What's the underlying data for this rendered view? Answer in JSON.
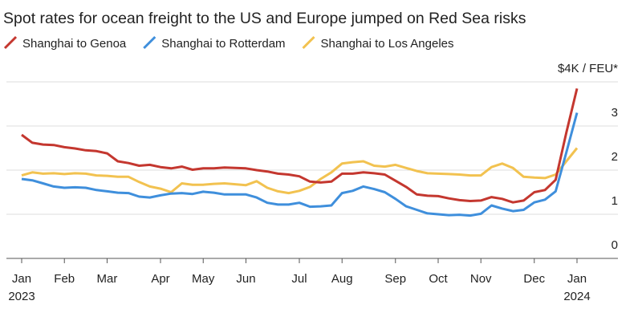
{
  "chart_data": {
    "type": "line",
    "title": "Spot rates for ocean freight to the US and Europe jumped on Red Sea risks",
    "categories": [
      "Jan\n2023",
      null,
      null,
      null,
      "Feb",
      null,
      null,
      null,
      "Mar",
      null,
      null,
      null,
      null,
      "Apr",
      null,
      null,
      null,
      "May",
      null,
      null,
      null,
      "Jun",
      null,
      null,
      null,
      null,
      "Jul",
      null,
      null,
      null,
      "Aug",
      null,
      null,
      null,
      null,
      "Sep",
      null,
      null,
      null,
      "Oct",
      null,
      null,
      null,
      "Nov",
      null,
      null,
      null,
      null,
      "Dec",
      null,
      null,
      null,
      "Jan\n2024"
    ],
    "series": [
      {
        "name": "Shanghai to Genoa",
        "color": "#c4372f",
        "values": [
          2.8,
          2.62,
          2.58,
          2.57,
          2.52,
          2.49,
          2.45,
          2.43,
          2.38,
          2.2,
          2.16,
          2.1,
          2.12,
          2.07,
          2.04,
          2.08,
          2.01,
          2.04,
          2.04,
          2.06,
          2.05,
          2.04,
          2.0,
          1.97,
          1.92,
          1.9,
          1.86,
          1.74,
          1.72,
          1.74,
          1.92,
          1.92,
          1.95,
          1.93,
          1.9,
          1.76,
          1.62,
          1.45,
          1.42,
          1.41,
          1.36,
          1.32,
          1.3,
          1.31,
          1.39,
          1.35,
          1.27,
          1.31,
          1.5,
          1.55,
          1.78,
          2.85,
          3.85
        ]
      },
      {
        "name": "Shanghai to Rotterdam",
        "color": "#3f8fdc",
        "values": [
          1.8,
          1.77,
          1.7,
          1.63,
          1.6,
          1.61,
          1.6,
          1.55,
          1.52,
          1.49,
          1.48,
          1.4,
          1.38,
          1.43,
          1.47,
          1.48,
          1.46,
          1.51,
          1.49,
          1.45,
          1.45,
          1.45,
          1.38,
          1.26,
          1.22,
          1.22,
          1.26,
          1.17,
          1.18,
          1.2,
          1.48,
          1.53,
          1.63,
          1.57,
          1.5,
          1.35,
          1.18,
          1.1,
          1.02,
          1.0,
          0.98,
          0.99,
          0.97,
          1.01,
          1.2,
          1.13,
          1.07,
          1.1,
          1.27,
          1.33,
          1.52,
          2.4,
          3.3
        ]
      },
      {
        "name": "Shanghai to Los Angeles",
        "color": "#f2c250",
        "values": [
          1.88,
          1.95,
          1.92,
          1.93,
          1.91,
          1.93,
          1.92,
          1.88,
          1.87,
          1.85,
          1.85,
          1.73,
          1.63,
          1.58,
          1.5,
          1.7,
          1.67,
          1.67,
          1.69,
          1.7,
          1.68,
          1.66,
          1.75,
          1.6,
          1.52,
          1.48,
          1.53,
          1.62,
          1.8,
          1.95,
          2.15,
          2.18,
          2.2,
          2.1,
          2.08,
          2.12,
          2.05,
          1.98,
          1.93,
          1.92,
          1.91,
          1.9,
          1.88,
          1.88,
          2.07,
          2.15,
          2.05,
          1.85,
          1.83,
          1.82,
          1.9,
          2.2,
          2.5
        ]
      }
    ],
    "ylim": [
      0,
      4
    ],
    "yticks": [
      0,
      1,
      2,
      3,
      {
        "value": 4,
        "label": "$4K / FEU*"
      }
    ],
    "grid": true
  }
}
